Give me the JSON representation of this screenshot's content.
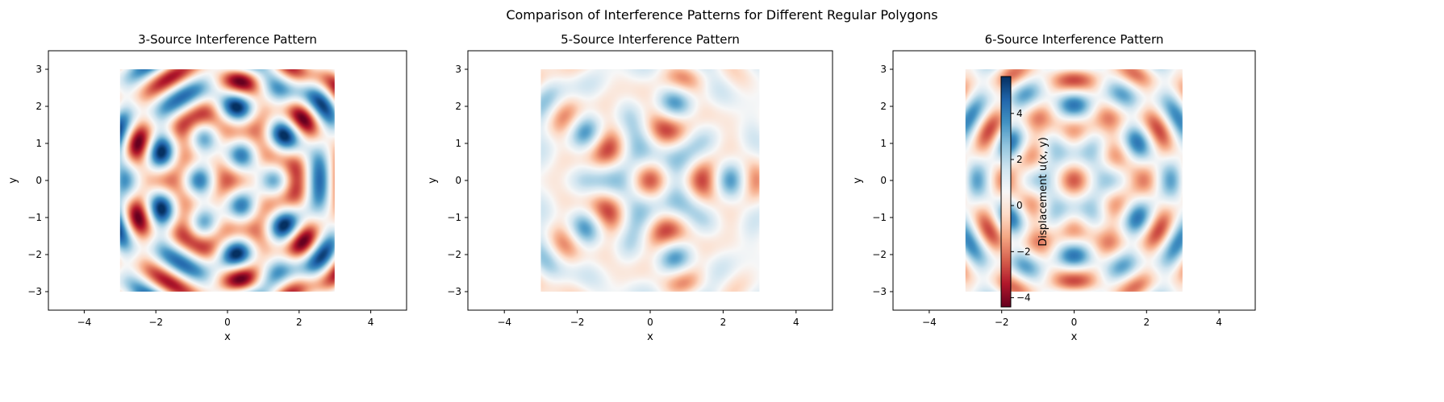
{
  "figure_title": "Comparison of Interference Patterns for Different Regular Polygons",
  "chart_data": [
    {
      "type": "heatmap",
      "title": "3-Source Interference Pattern",
      "xlabel": "x",
      "ylabel": "y",
      "n_sources": 3,
      "data_extent": {
        "x": [
          -3,
          3
        ],
        "y": [
          -3,
          3
        ]
      },
      "xlim": [
        -5,
        5
      ],
      "ylim": [
        -3.5,
        3.5
      ],
      "xticks": [
        -4,
        -2,
        0,
        2,
        4
      ],
      "yticks": [
        -3,
        -2,
        -1,
        0,
        1,
        2,
        3
      ],
      "colormap": "RdBu",
      "grid": false
    },
    {
      "type": "heatmap",
      "title": "5-Source Interference Pattern",
      "xlabel": "x",
      "ylabel": "y",
      "n_sources": 5,
      "data_extent": {
        "x": [
          -3,
          3
        ],
        "y": [
          -3,
          3
        ]
      },
      "xlim": [
        -5,
        5
      ],
      "ylim": [
        -3.5,
        3.5
      ],
      "xticks": [
        -4,
        -2,
        0,
        2,
        4
      ],
      "yticks": [
        -3,
        -2,
        -1,
        0,
        1,
        2,
        3
      ],
      "colormap": "RdBu",
      "grid": false
    },
    {
      "type": "heatmap",
      "title": "6-Source Interference Pattern",
      "xlabel": "x",
      "ylabel": "y",
      "n_sources": 6,
      "data_extent": {
        "x": [
          -3,
          3
        ],
        "y": [
          -3,
          3
        ]
      },
      "xlim": [
        -5,
        5
      ],
      "ylim": [
        -3.5,
        3.5
      ],
      "xticks": [
        -4,
        -2,
        0,
        2,
        4
      ],
      "yticks": [
        -3,
        -2,
        -1,
        0,
        1,
        2,
        3
      ],
      "colormap": "RdBu",
      "grid": false,
      "colorbar": {
        "label": "Displacement u(x, y)",
        "range": [
          -4.4,
          5.6
        ],
        "ticks": [
          -4,
          -2,
          0,
          2,
          4
        ]
      }
    }
  ],
  "colormap_stops": [
    "#67001f",
    "#b2182b",
    "#d6604d",
    "#f4a582",
    "#fddbc7",
    "#f7f7f7",
    "#d1e5f0",
    "#92c5de",
    "#4393c3",
    "#2166ac",
    "#053061"
  ]
}
